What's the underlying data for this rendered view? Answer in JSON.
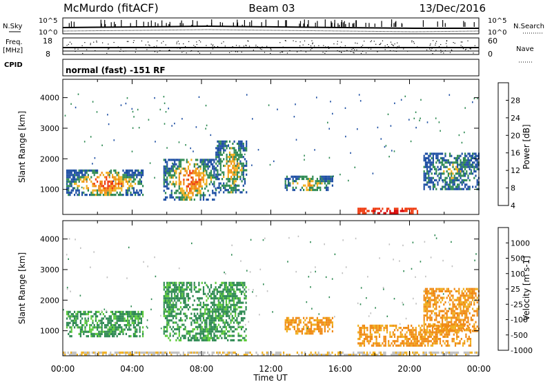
{
  "header": {
    "station": "McMurdo (fitACF)",
    "beam": "Beam 03",
    "date": "13/Dec/2016",
    "left_label_1": "N.Sky",
    "left_label_2": "Freq.",
    "left_label_3": "[MHz]",
    "left_label_4": "CPID",
    "right_label_1": "N.Search",
    "right_label_2": "Nave",
    "mode": "normal (fast) -151 RF"
  },
  "chart_data": [
    {
      "type": "line",
      "name": "noise-panel",
      "ylabel_left": "N.Sky",
      "ylabel_right": "N.Search",
      "left_ticks": [
        "10^5",
        "10^0"
      ],
      "right_ticks": [
        "10^5",
        "10^0"
      ],
      "xlim": [
        "00:00",
        "24:00"
      ]
    },
    {
      "type": "scatter",
      "name": "freq-nave-panel",
      "left_ticks": [
        "18",
        "8"
      ],
      "right_ticks": [
        "60",
        "0"
      ],
      "xlim": [
        "00:00",
        "24:00"
      ]
    },
    {
      "type": "heatmap",
      "name": "power",
      "ylabel": "Slant Range [km]",
      "xlabel": "",
      "y_ticks": [
        1000,
        2000,
        3000,
        4000
      ],
      "ylim": [
        180,
        4600
      ],
      "colorbar_label": "Power [dB]",
      "colorbar_ticks": [
        "28",
        "24",
        "20",
        "16",
        "12",
        "8",
        "4"
      ],
      "colorbar_colors": [
        "#d80000",
        "#ef3b10",
        "#f08a14",
        "#f0b020",
        "#2f8a53",
        "#1e4fa3",
        "#0a14e6"
      ],
      "clusters": [
        {
          "t0": 0.2,
          "t1": 4.6,
          "r0": 800,
          "r1": 1650,
          "level": 3
        },
        {
          "t0": 5.8,
          "t1": 8.8,
          "r0": 700,
          "r1": 2000,
          "level": 3
        },
        {
          "t0": 8.8,
          "t1": 10.6,
          "r0": 900,
          "r1": 2600,
          "level": 2
        },
        {
          "t0": 12.8,
          "t1": 15.6,
          "r0": 950,
          "r1": 1450,
          "level": 2
        },
        {
          "t0": 17.0,
          "t1": 20.5,
          "r0": 200,
          "r1": 400,
          "level": 4
        },
        {
          "t0": 20.8,
          "t1": 24.0,
          "r0": 1000,
          "r1": 2200,
          "level": 1
        }
      ]
    },
    {
      "type": "heatmap",
      "name": "velocity",
      "ylabel": "Slant Range [km]",
      "xlabel": "Time UT",
      "y_ticks": [
        1000,
        2000,
        3000,
        4000
      ],
      "ylim": [
        180,
        4600
      ],
      "x_ticks": [
        "00:00",
        "04:00",
        "08:00",
        "12:00",
        "16:00",
        "20:00",
        "00:00"
      ],
      "colorbar_label": "Velocity [m s-1]",
      "colorbar_ticks": [
        "1000",
        "500",
        "100",
        "25",
        "-25",
        "-100",
        "-500",
        "-1000"
      ],
      "colorbar_colors": [
        "#1a3fb0",
        "#2f8a53",
        "#5ccb3a",
        "#c0c0c0",
        "#f0b020",
        "#f08a14",
        "#ef3b10",
        "#e00000"
      ],
      "clusters": [
        {
          "t0": 0.2,
          "t1": 4.6,
          "r0": 800,
          "r1": 1650,
          "vel": 200
        },
        {
          "t0": 5.8,
          "t1": 10.6,
          "r0": 700,
          "r1": 2600,
          "vel": 200
        },
        {
          "t0": 12.8,
          "t1": 15.6,
          "r0": 900,
          "r1": 1450,
          "vel": -300
        },
        {
          "t0": 17.0,
          "t1": 23.5,
          "r0": 550,
          "r1": 1200,
          "vel": -300
        },
        {
          "t0": 20.8,
          "t1": 24.0,
          "r0": 1000,
          "r1": 2400,
          "vel": -200
        },
        {
          "t0": 0.0,
          "t1": 24.0,
          "r0": 180,
          "r1": 320,
          "vel": 10
        }
      ]
    }
  ]
}
